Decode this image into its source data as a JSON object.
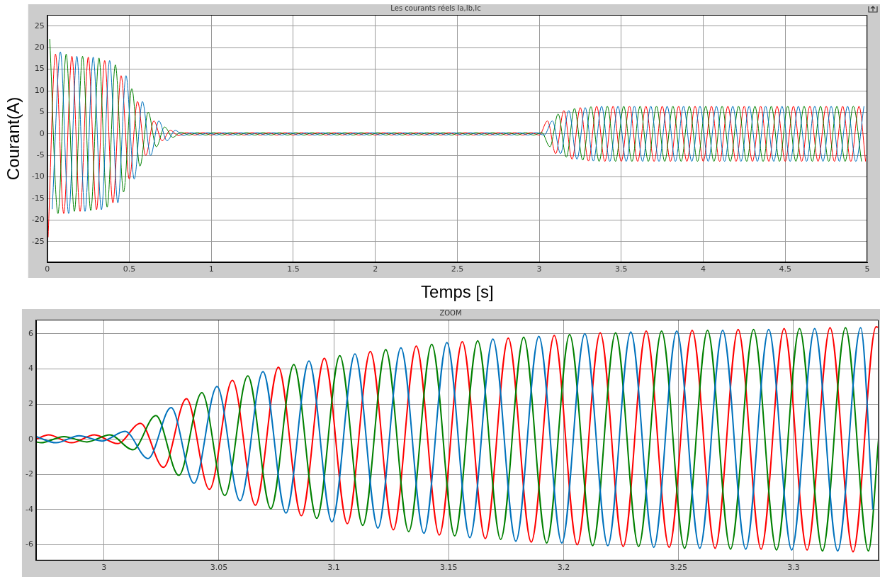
{
  "chart_data": [
    {
      "type": "line",
      "title": "Les courants réels Ia,Ib,Ic",
      "xlabel": "Temps [s]",
      "ylabel": "Courant(A)",
      "xlim": [
        0,
        5
      ],
      "xticks": [
        0,
        0.5,
        1,
        1.5,
        2,
        2.5,
        3,
        3.5,
        4,
        4.5,
        5
      ],
      "ylim": [
        -29.8,
        27.6
      ],
      "yticks": [
        -25,
        -20,
        -15,
        -10,
        -5,
        0,
        5,
        10,
        15,
        20,
        25
      ],
      "grid": true,
      "series": [
        {
          "color": "#0072bd",
          "x": [
            0.03,
            0.08,
            0.13,
            0.18,
            0.23,
            0.28,
            0.33,
            0.38,
            0.43,
            0.48,
            0.53,
            0.58,
            0.63,
            0.68,
            0.73,
            0.78,
            0.83,
            0.88,
            0.93,
            0.98,
            1.03,
            1.08,
            1.13,
            1.18,
            1.23,
            1.28,
            1.33,
            1.38,
            1.43,
            1.48,
            1.53,
            1.58,
            1.63,
            1.68,
            1.73,
            1.78,
            1.83,
            1.88,
            1.93,
            1.98,
            2.03,
            2.08,
            2.13,
            2.18,
            2.23,
            2.28,
            2.33,
            2.38,
            2.43,
            2.48,
            2.53,
            2.58,
            2.63,
            2.68,
            2.73,
            2.78,
            2.83,
            2.88,
            2.93,
            2.98,
            3.03,
            3.08,
            3.13,
            3.18,
            3.23,
            3.28,
            3.33,
            3.38,
            3.43,
            3.48,
            3.53,
            3.58,
            3.63,
            3.68,
            3.73,
            3.78,
            3.83,
            3.88,
            3.93,
            3.98,
            4.03,
            4.08,
            4.13,
            4.18,
            4.23,
            4.28,
            4.33,
            4.38,
            4.43,
            4.48,
            4.53,
            4.58,
            4.63,
            4.68,
            4.73,
            4.78,
            4.83,
            4.88,
            4.93,
            4.98
          ],
          "values": [
            -17.5,
            19,
            -18.5,
            18,
            -18,
            17.8,
            -17.6,
            17,
            -16,
            13.5,
            -10.5,
            7.5,
            -5,
            3,
            -1.6,
            0.8,
            -0.4,
            0.3,
            -0.3,
            0.3,
            -0.3,
            0.3,
            -0.3,
            0.3,
            -0.3,
            0.3,
            -0.3,
            0.3,
            -0.3,
            0.3,
            -0.3,
            0.3,
            -0.3,
            0.3,
            -0.3,
            0.3,
            -0.3,
            0.3,
            -0.3,
            0.3,
            -0.3,
            0.3,
            -0.3,
            0.3,
            -0.3,
            0.3,
            -0.3,
            0.3,
            -0.3,
            0.3,
            -0.3,
            0.3,
            -0.3,
            0.3,
            -0.3,
            0.3,
            -0.3,
            0.3,
            -0.3,
            0.3,
            -0.3,
            3,
            -4.6,
            5.4,
            -5.9,
            6.1,
            -6.3,
            6.4,
            -6.4,
            6.4,
            -6.4,
            6.4,
            -6.4,
            6.4,
            -6.4,
            6.4,
            -6.4,
            6.4,
            -6.4,
            6.4,
            -6.4,
            6.4,
            -6.4,
            6.4,
            -6.4,
            6.4,
            -6.4,
            6.4,
            -6.4,
            6.4,
            -6.4,
            6.4,
            -6.4,
            6.4,
            -6.4,
            6.4,
            -6.4,
            6.4,
            -6.4,
            6.4
          ]
        },
        {
          "color": "#008000",
          "x": [
            0.015,
            0.065,
            0.115,
            0.165,
            0.215,
            0.265,
            0.315,
            0.365,
            0.415,
            0.465,
            0.515,
            0.565,
            0.615,
            0.665,
            0.715,
            0.765,
            0.815,
            0.865,
            0.915,
            0.965,
            1.015,
            1.065,
            1.115,
            1.165,
            1.215,
            1.265,
            1.315,
            1.365,
            1.415,
            1.465,
            1.515,
            1.565,
            1.615,
            1.665,
            1.715,
            1.765,
            1.815,
            1.865,
            1.915,
            1.965,
            2.015,
            2.065,
            2.115,
            2.165,
            2.215,
            2.265,
            2.315,
            2.365,
            2.415,
            2.465,
            2.515,
            2.565,
            2.615,
            2.665,
            2.715,
            2.765,
            2.815,
            2.865,
            2.915,
            2.965,
            3.015,
            3.065,
            3.115,
            3.165,
            3.215,
            3.265,
            3.315,
            3.365,
            3.415,
            3.465,
            3.515,
            3.565,
            3.615,
            3.665,
            3.715,
            3.765,
            3.815,
            3.865,
            3.915,
            3.965,
            4.015,
            4.065,
            4.115,
            4.165,
            4.215,
            4.265,
            4.315,
            4.365,
            4.415,
            4.465,
            4.515,
            4.565,
            4.615,
            4.665,
            4.715,
            4.765,
            4.815,
            4.865,
            4.915,
            4.965
          ],
          "values": [
            22,
            -18.5,
            18.5,
            -18,
            18,
            -17.8,
            17.6,
            -17,
            16,
            -13.5,
            10.5,
            -7.5,
            5,
            -3,
            1.6,
            -0.8,
            0.4,
            -0.3,
            0.3,
            -0.3,
            0.3,
            -0.3,
            0.3,
            -0.3,
            0.3,
            -0.3,
            0.3,
            -0.3,
            0.3,
            -0.3,
            0.3,
            -0.3,
            0.3,
            -0.3,
            0.3,
            -0.3,
            0.3,
            -0.3,
            0.3,
            -0.3,
            0.3,
            -0.3,
            0.3,
            -0.3,
            0.3,
            -0.3,
            0.3,
            -0.3,
            0.3,
            -0.3,
            0.3,
            -0.3,
            0.3,
            -0.3,
            0.3,
            -0.3,
            0.3,
            -0.3,
            0.3,
            -0.3,
            0.3,
            -3,
            4.6,
            -5.4,
            5.9,
            -6.1,
            6.3,
            -6.4,
            6.4,
            -6.4,
            6.4,
            -6.4,
            6.4,
            -6.4,
            6.4,
            -6.4,
            6.4,
            -6.4,
            6.4,
            -6.4,
            6.4,
            -6.4,
            6.4,
            -6.4,
            6.4,
            -6.4,
            6.4,
            -6.4,
            6.4,
            -6.4,
            6.4,
            -6.4,
            6.4,
            -6.4,
            6.4,
            -6.4,
            6.4,
            -6.4,
            6.4,
            -6.4
          ]
        },
        {
          "color": "#ff0000",
          "x": [
            0.005,
            0.05,
            0.1,
            0.15,
            0.2,
            0.25,
            0.3,
            0.35,
            0.4,
            0.45,
            0.5,
            0.55,
            0.6,
            0.65,
            0.7,
            0.75,
            0.8,
            0.85,
            0.9,
            0.95,
            1,
            1.05,
            1.1,
            1.15,
            1.2,
            1.25,
            1.3,
            1.35,
            1.4,
            1.45,
            1.5,
            1.55,
            1.6,
            1.65,
            1.7,
            1.75,
            1.8,
            1.85,
            1.9,
            1.95,
            2,
            2.05,
            2.1,
            2.15,
            2.2,
            2.25,
            2.3,
            2.35,
            2.4,
            2.45,
            2.5,
            2.55,
            2.6,
            2.65,
            2.7,
            2.75,
            2.8,
            2.85,
            2.9,
            2.95,
            3,
            3.05,
            3.1,
            3.15,
            3.2,
            3.25,
            3.3,
            3.35,
            3.4,
            3.45,
            3.5,
            3.55,
            3.6,
            3.65,
            3.7,
            3.75,
            3.8,
            3.85,
            3.9,
            3.95,
            4,
            4.05,
            4.1,
            4.15,
            4.2,
            4.25,
            4.3,
            4.35,
            4.4,
            4.45,
            4.5,
            4.55,
            4.6,
            4.65,
            4.7,
            4.75,
            4.8,
            4.85,
            4.9,
            4.95,
            4.99
          ],
          "values": [
            -24,
            18.5,
            -18.5,
            18,
            -18,
            17.8,
            -17.6,
            17,
            -16,
            13.5,
            -10.5,
            7.5,
            -5,
            3,
            -1.6,
            0.8,
            -0.4,
            0.3,
            -0.3,
            0.3,
            -0.3,
            0.3,
            -0.3,
            0.3,
            -0.3,
            0.3,
            -0.3,
            0.3,
            -0.3,
            0.3,
            -0.3,
            0.3,
            -0.3,
            0.3,
            -0.3,
            0.3,
            -0.3,
            0.3,
            -0.3,
            0.3,
            -0.3,
            0.3,
            -0.3,
            0.3,
            -0.3,
            0.3,
            -0.3,
            0.3,
            -0.3,
            0.3,
            -0.3,
            0.3,
            -0.3,
            0.3,
            -0.3,
            0.3,
            -0.3,
            0.3,
            -0.3,
            0.3,
            -0.3,
            3,
            -4.6,
            5.4,
            -5.9,
            6.1,
            -6.3,
            6.4,
            -6.4,
            6.4,
            -6.4,
            6.4,
            -6.4,
            6.4,
            -6.4,
            6.4,
            -6.4,
            6.4,
            -6.4,
            6.4,
            -6.4,
            6.4,
            -6.4,
            6.4,
            -6.4,
            6.4,
            -6.4,
            6.4,
            -6.4,
            6.4,
            -6.4,
            6.4,
            -6.4,
            6.4,
            -6.4,
            6.4,
            -6.4,
            6.4,
            -6.4,
            6.4,
            -6.4
          ]
        }
      ]
    },
    {
      "type": "line",
      "title": "ZOOM",
      "xlim": [
        2.9705,
        3.337
      ],
      "xticks": [
        3,
        3.05,
        3.1,
        3.15,
        3.2,
        3.25,
        3.3
      ],
      "ylim": [
        -6.9,
        6.8
      ],
      "yticks": [
        -6,
        -4,
        -2,
        0,
        2,
        4,
        6
      ],
      "grid": true,
      "series": [
        {
          "color": "#0072bd",
          "x": [
            2.9705,
            2.9792,
            2.9892,
            2.9992,
            3.0092,
            3.0192,
            3.0292,
            3.0392,
            3.0492,
            3.0592,
            3.0692,
            3.0792,
            3.0892,
            3.0992,
            3.1092,
            3.1192,
            3.1292,
            3.1392,
            3.1492,
            3.1592,
            3.1692,
            3.1792,
            3.1892,
            3.1992,
            3.2092,
            3.2192,
            3.2292,
            3.2392,
            3.2492,
            3.2592,
            3.2692,
            3.2792,
            3.2892,
            3.2992,
            3.3092,
            3.3192,
            3.3292,
            3.3345
          ],
          "values": [
            0.15,
            -0.2,
            0.2,
            -0.1,
            0.45,
            -1.1,
            1.8,
            -2.5,
            3,
            -3.5,
            3.85,
            -4.2,
            4.45,
            -4.7,
            4.85,
            -5.05,
            5.2,
            -5.35,
            5.5,
            -5.6,
            5.7,
            -5.8,
            5.85,
            -5.9,
            6,
            -6.05,
            6.1,
            -6.15,
            6.15,
            -6.2,
            6.2,
            -6.25,
            6.25,
            -6.3,
            6.3,
            -6.35,
            6.35,
            -4
          ]
        },
        {
          "color": "#008000",
          "x": [
            2.9705,
            2.9726,
            2.9826,
            2.9926,
            3.0026,
            3.0126,
            3.0226,
            3.0326,
            3.0426,
            3.0526,
            3.0626,
            3.0726,
            3.0826,
            3.0926,
            3.1026,
            3.1126,
            3.1226,
            3.1326,
            3.1426,
            3.1526,
            3.1626,
            3.1726,
            3.1826,
            3.1926,
            3.2026,
            3.2126,
            3.2226,
            3.2326,
            3.2426,
            3.2526,
            3.2626,
            3.2726,
            3.2826,
            3.2926,
            3.3026,
            3.3126,
            3.3226,
            3.3326,
            3.337
          ],
          "values": [
            -0.15,
            -0.2,
            0.15,
            -0.15,
            0.25,
            -0.6,
            1.35,
            -2.05,
            2.65,
            -3.2,
            3.6,
            -3.95,
            4.25,
            -4.5,
            4.75,
            -4.9,
            5.1,
            -5.25,
            5.4,
            -5.5,
            5.6,
            -5.7,
            5.8,
            -5.9,
            5.95,
            -6.05,
            6.05,
            -6.1,
            6.15,
            -6.2,
            6.2,
            -6.25,
            6.25,
            -6.3,
            6.3,
            -6.35,
            6.35,
            -6.35,
            0
          ]
        },
        {
          "color": "#ff0000",
          "x": [
            2.9705,
            2.9759,
            2.9859,
            2.9959,
            3.0059,
            3.0159,
            3.0259,
            3.0359,
            3.0459,
            3.0559,
            3.0659,
            3.0759,
            3.0859,
            3.0959,
            3.1059,
            3.1159,
            3.1259,
            3.1359,
            3.1459,
            3.1559,
            3.1659,
            3.1759,
            3.1859,
            3.1959,
            3.2059,
            3.2159,
            3.2259,
            3.2359,
            3.2459,
            3.2559,
            3.2659,
            3.2759,
            3.2859,
            3.2959,
            3.3059,
            3.3159,
            3.3259,
            3.3359,
            3.337
          ],
          "values": [
            0,
            0.25,
            -0.2,
            0.25,
            -0.25,
            0.9,
            -1.6,
            2.3,
            -2.85,
            3.35,
            -3.75,
            4.1,
            -4.35,
            4.6,
            -4.8,
            5,
            -5.15,
            5.3,
            -5.45,
            5.55,
            -5.65,
            5.75,
            -5.85,
            5.9,
            -6,
            6.05,
            -6.1,
            6.15,
            -6.15,
            6.2,
            -6.2,
            6.25,
            -6.25,
            6.3,
            -6.3,
            6.35,
            -6.4,
            6.4,
            6.35
          ]
        }
      ]
    }
  ]
}
